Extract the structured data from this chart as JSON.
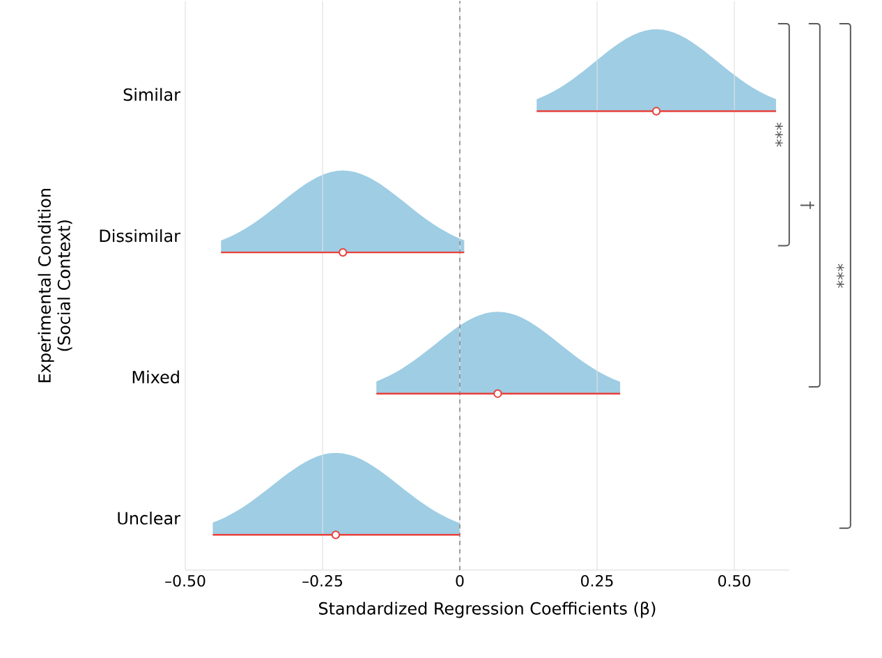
{
  "chart_data": {
    "type": "scatter",
    "orientation": "horizontal",
    "categories": [
      "Similar",
      "Dissimilar",
      "Mixed",
      "Unclear"
    ],
    "values": [
      0.358,
      -0.213,
      0.069,
      -0.226
    ],
    "errors": [
      [
        0.14,
        0.576
      ],
      [
        -0.435,
        0.008
      ],
      [
        -0.152,
        0.292
      ],
      [
        -0.45,
        0.0
      ]
    ],
    "color": "#e8413a",
    "marker": "circle",
    "xlim": [
      -0.5,
      0.6
    ],
    "xticks": [
      {
        "value": -0.5,
        "label": "–0.50"
      },
      {
        "value": -0.25,
        "label": "–0.25"
      },
      0,
      0.25,
      {
        "value": 0.5,
        "label": "0.50"
      }
    ],
    "xlabel": "Standardized Regression Coefficients (β)",
    "ylabel": "Experimental Condition (Social Context)",
    "grid": "x",
    "ref_lines": [
      {
        "axis": "x",
        "value": 0,
        "color": "#888888",
        "line_style": "dashed"
      }
    ],
    "annotations": [
      "***",
      "†",
      "***"
    ]
  }
}
